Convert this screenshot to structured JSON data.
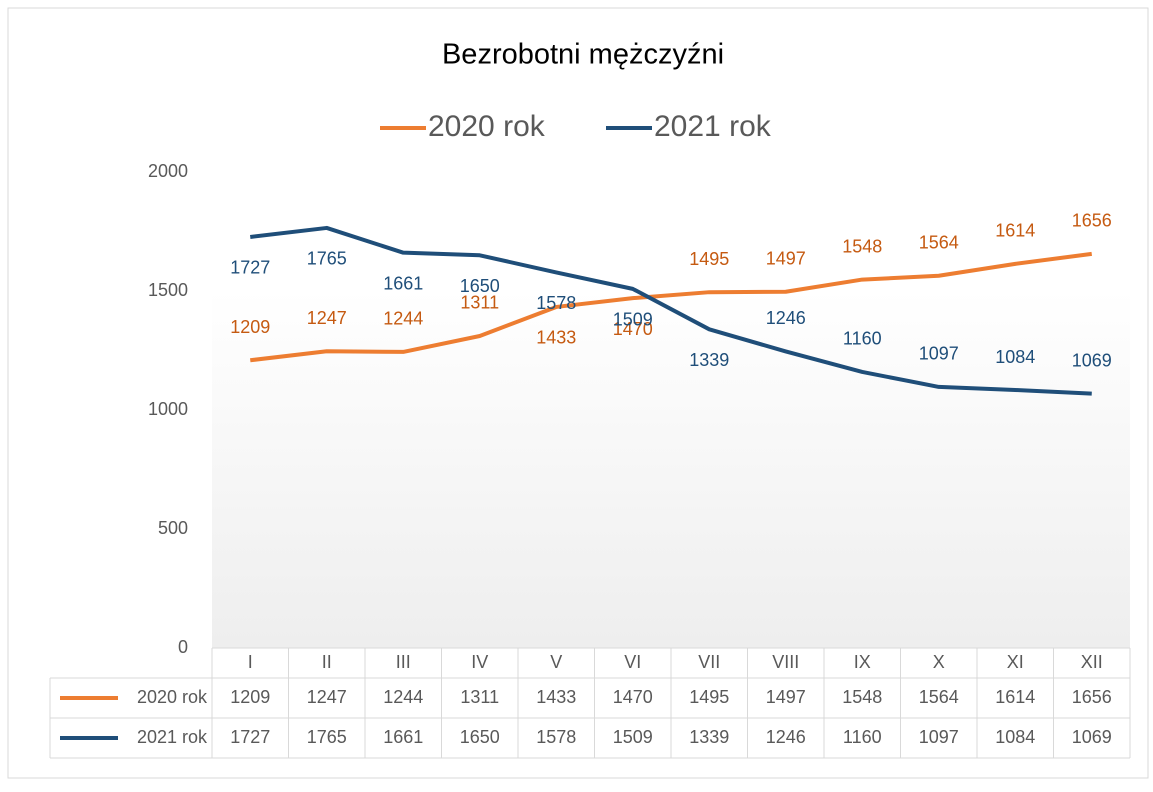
{
  "chart_data": {
    "type": "line",
    "title": "Bezrobotni mężczyźni",
    "categories": [
      "I",
      "II",
      "III",
      "IV",
      "V",
      "VI",
      "VII",
      "VIII",
      "IX",
      "X",
      "XI",
      "XII"
    ],
    "series": [
      {
        "name": "2020 rok",
        "color": "#ed7d31",
        "label_color": "#c55a11",
        "values": [
          1209,
          1247,
          1244,
          1311,
          1433,
          1470,
          1495,
          1497,
          1548,
          1564,
          1614,
          1656
        ]
      },
      {
        "name": "2021 rok",
        "color": "#1f4e79",
        "label_color": "#1f4e79",
        "values": [
          1727,
          1765,
          1661,
          1650,
          1578,
          1509,
          1339,
          1246,
          1160,
          1097,
          1084,
          1069
        ]
      }
    ],
    "ylim": [
      0,
      2000
    ],
    "yticks": [
      0,
      500,
      1000,
      1500,
      2000
    ],
    "grid": false,
    "legend": "top",
    "data_table": true
  }
}
